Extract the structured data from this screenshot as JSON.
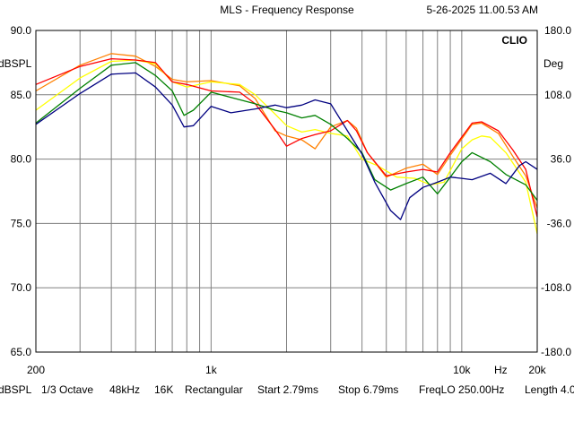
{
  "header": {
    "title": "MLS - Frequency Response",
    "timestamp": "5-26-2025 11.00.53 AM",
    "brand": "CLIO"
  },
  "status_bar": {
    "items": [
      "dBSPL",
      "1/3 Octave",
      "48kHz",
      "16K",
      "Rectangular",
      "Start 2.79ms",
      "Stop 6.79ms",
      "FreqLO 250.00Hz",
      "Length 4.0"
    ]
  },
  "colors": {
    "background": "#ffffff",
    "grid": "#808080",
    "axes": "#000000"
  },
  "chart_data": {
    "type": "line",
    "x_scale": "log",
    "xlim": [
      200,
      20000
    ],
    "ylim": [
      65,
      90
    ],
    "y2lim": [
      -180,
      180
    ],
    "grid": true,
    "ylabel": "dBSPL",
    "y2label": "Deg",
    "x_tick_labels": [
      {
        "x": 200,
        "label": "200"
      },
      {
        "x": 1000,
        "label": "1k"
      },
      {
        "x": 10000,
        "label": "10k"
      },
      {
        "x": 14300,
        "label": "Hz"
      },
      {
        "x": 20000,
        "label": "20k"
      }
    ],
    "y_ticks": [
      "90.0",
      "85.0",
      "80.0",
      "75.0",
      "70.0",
      "65.0"
    ],
    "y2_ticks": [
      "180.0",
      "108.0",
      "36.0",
      "-36.0",
      "-108.0",
      "-180.0"
    ],
    "series": [
      {
        "color": "#ff8000",
        "points": [
          [
            200,
            85.3
          ],
          [
            300,
            87.3
          ],
          [
            400,
            88.2
          ],
          [
            500,
            88.0
          ],
          [
            600,
            87.2
          ],
          [
            700,
            86.2
          ],
          [
            800,
            86.0
          ],
          [
            1000,
            86.1
          ],
          [
            1300,
            85.7
          ],
          [
            1500,
            84.7
          ],
          [
            1800,
            82.2
          ],
          [
            2000,
            81.8
          ],
          [
            2300,
            81.5
          ],
          [
            2600,
            80.8
          ],
          [
            3000,
            82.5
          ],
          [
            3500,
            83.0
          ],
          [
            3800,
            82.4
          ],
          [
            4200,
            80.5
          ],
          [
            5000,
            78.6
          ],
          [
            6000,
            79.3
          ],
          [
            7000,
            79.6
          ],
          [
            8000,
            78.8
          ],
          [
            9000,
            80.3
          ],
          [
            11000,
            82.7
          ],
          [
            12000,
            82.8
          ],
          [
            14000,
            82.0
          ],
          [
            16000,
            80.2
          ],
          [
            18000,
            78.7
          ],
          [
            20000,
            76.2
          ]
        ]
      },
      {
        "color": "#ffff00",
        "points": [
          [
            200,
            83.8
          ],
          [
            300,
            86.3
          ],
          [
            400,
            87.6
          ],
          [
            500,
            87.7
          ],
          [
            600,
            87.4
          ],
          [
            700,
            86.0
          ],
          [
            800,
            85.6
          ],
          [
            1000,
            86.0
          ],
          [
            1300,
            85.8
          ],
          [
            1500,
            85.0
          ],
          [
            1800,
            83.5
          ],
          [
            2000,
            82.6
          ],
          [
            2300,
            82.1
          ],
          [
            2600,
            82.3
          ],
          [
            3000,
            82.0
          ],
          [
            3500,
            81.8
          ],
          [
            4000,
            80.0
          ],
          [
            4600,
            79.5
          ],
          [
            5500,
            78.6
          ],
          [
            6500,
            78.5
          ],
          [
            7500,
            78.0
          ],
          [
            8500,
            78.2
          ],
          [
            10000,
            80.8
          ],
          [
            11000,
            81.5
          ],
          [
            12000,
            81.8
          ],
          [
            13000,
            81.7
          ],
          [
            15000,
            80.5
          ],
          [
            18000,
            78.2
          ],
          [
            20000,
            74.2
          ]
        ]
      },
      {
        "color": "#ff0000",
        "points": [
          [
            200,
            85.8
          ],
          [
            300,
            87.2
          ],
          [
            400,
            87.8
          ],
          [
            500,
            87.7
          ],
          [
            600,
            87.5
          ],
          [
            700,
            86.0
          ],
          [
            800,
            85.8
          ],
          [
            1000,
            85.3
          ],
          [
            1300,
            85.2
          ],
          [
            1500,
            84.3
          ],
          [
            1800,
            82.3
          ],
          [
            2000,
            81.0
          ],
          [
            2300,
            81.6
          ],
          [
            2600,
            81.9
          ],
          [
            3000,
            82.2
          ],
          [
            3500,
            83.0
          ],
          [
            3800,
            82.2
          ],
          [
            4200,
            80.5
          ],
          [
            5000,
            78.7
          ],
          [
            6000,
            79.0
          ],
          [
            7000,
            79.2
          ],
          [
            8000,
            79.0
          ],
          [
            9000,
            80.5
          ],
          [
            11000,
            82.8
          ],
          [
            12000,
            82.9
          ],
          [
            14000,
            82.2
          ],
          [
            16000,
            80.7
          ],
          [
            18000,
            79.2
          ],
          [
            20000,
            75.5
          ]
        ]
      },
      {
        "color": "#008000",
        "points": [
          [
            200,
            82.8
          ],
          [
            300,
            85.5
          ],
          [
            400,
            87.3
          ],
          [
            500,
            87.5
          ],
          [
            600,
            86.5
          ],
          [
            700,
            85.3
          ],
          [
            780,
            83.4
          ],
          [
            850,
            83.8
          ],
          [
            1000,
            85.2
          ],
          [
            1200,
            84.8
          ],
          [
            1500,
            84.3
          ],
          [
            1800,
            83.8
          ],
          [
            2000,
            83.6
          ],
          [
            2300,
            83.2
          ],
          [
            2600,
            83.4
          ],
          [
            3000,
            82.7
          ],
          [
            3500,
            81.6
          ],
          [
            4000,
            80.5
          ],
          [
            4500,
            78.4
          ],
          [
            5200,
            77.6
          ],
          [
            6000,
            78.1
          ],
          [
            7000,
            78.6
          ],
          [
            8000,
            77.3
          ],
          [
            9000,
            78.6
          ],
          [
            10000,
            79.8
          ],
          [
            11000,
            80.5
          ],
          [
            13000,
            79.8
          ],
          [
            15000,
            78.8
          ],
          [
            18000,
            78.0
          ],
          [
            20000,
            76.8
          ]
        ]
      },
      {
        "color": "#000080",
        "points": [
          [
            200,
            82.7
          ],
          [
            300,
            85.1
          ],
          [
            400,
            86.6
          ],
          [
            500,
            86.7
          ],
          [
            600,
            85.6
          ],
          [
            700,
            84.2
          ],
          [
            780,
            82.5
          ],
          [
            850,
            82.6
          ],
          [
            1000,
            84.1
          ],
          [
            1200,
            83.6
          ],
          [
            1500,
            83.9
          ],
          [
            1800,
            84.2
          ],
          [
            2000,
            84.0
          ],
          [
            2300,
            84.2
          ],
          [
            2600,
            84.6
          ],
          [
            3000,
            84.3
          ],
          [
            3500,
            82.2
          ],
          [
            4000,
            80.4
          ],
          [
            4500,
            78.2
          ],
          [
            5200,
            76.0
          ],
          [
            5700,
            75.3
          ],
          [
            6200,
            77.0
          ],
          [
            7000,
            77.8
          ],
          [
            8000,
            78.2
          ],
          [
            9000,
            78.6
          ],
          [
            10000,
            78.5
          ],
          [
            11000,
            78.4
          ],
          [
            13000,
            78.9
          ],
          [
            15000,
            78.1
          ],
          [
            17000,
            79.5
          ],
          [
            18000,
            79.8
          ],
          [
            20000,
            79.2
          ]
        ]
      }
    ]
  }
}
